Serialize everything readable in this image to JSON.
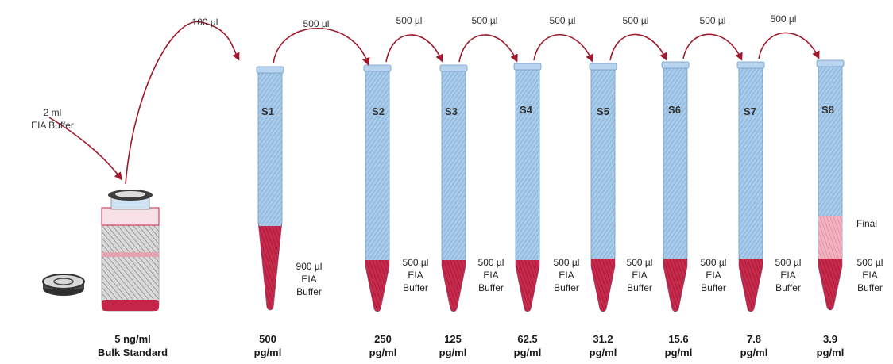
{
  "colors": {
    "arrow": "#9e1a2c",
    "tube_blue": "#9cc3e6",
    "tube_blue_dark": "#7aa6d0",
    "liquid": "#c42548",
    "liquid_light": "#e7879b"
  },
  "input": {
    "volume": "2 ml",
    "buffer": "EIA Buffer"
  },
  "bulk": {
    "conc": "5 ng/ml",
    "name": "Bulk Standard"
  },
  "transfers": [
    "100 µl",
    "500 µl",
    "500 µl",
    "500 µl",
    "500 µl",
    "500 µl",
    "500 µl",
    "500 µl"
  ],
  "tubes": [
    {
      "name": "S1",
      "buffer_vol": "900 µl",
      "buffer_l1": "EIA",
      "buffer_l2": "Buffer",
      "conc": "500",
      "unit": "pg/ml"
    },
    {
      "name": "S2",
      "buffer_vol": "500 µl",
      "buffer_l1": "EIA",
      "buffer_l2": "Buffer",
      "conc": "250",
      "unit": "pg/ml"
    },
    {
      "name": "S3",
      "buffer_vol": "500 µl",
      "buffer_l1": "EIA",
      "buffer_l2": "Buffer",
      "conc": "125",
      "unit": "pg/ml"
    },
    {
      "name": "S4",
      "buffer_vol": "500 µl",
      "buffer_l1": "EIA",
      "buffer_l2": "Buffer",
      "conc": "62.5",
      "unit": "pg/ml"
    },
    {
      "name": "S5",
      "buffer_vol": "500 µl",
      "buffer_l1": "EIA",
      "buffer_l2": "Buffer",
      "conc": "31.2",
      "unit": "pg/ml"
    },
    {
      "name": "S6",
      "buffer_vol": "500 µl",
      "buffer_l1": "EIA",
      "buffer_l2": "Buffer",
      "conc": "15.6",
      "unit": "pg/ml"
    },
    {
      "name": "S7",
      "buffer_vol": "500 µl",
      "buffer_l1": "EIA",
      "buffer_l2": "Buffer",
      "conc": "7.8",
      "unit": "pg/ml"
    },
    {
      "name": "S8",
      "buffer_vol": "500 µl",
      "buffer_l1": "EIA",
      "buffer_l2": "Buffer",
      "conc": "3.9",
      "unit": "pg/ml"
    }
  ],
  "final_label": "Final"
}
